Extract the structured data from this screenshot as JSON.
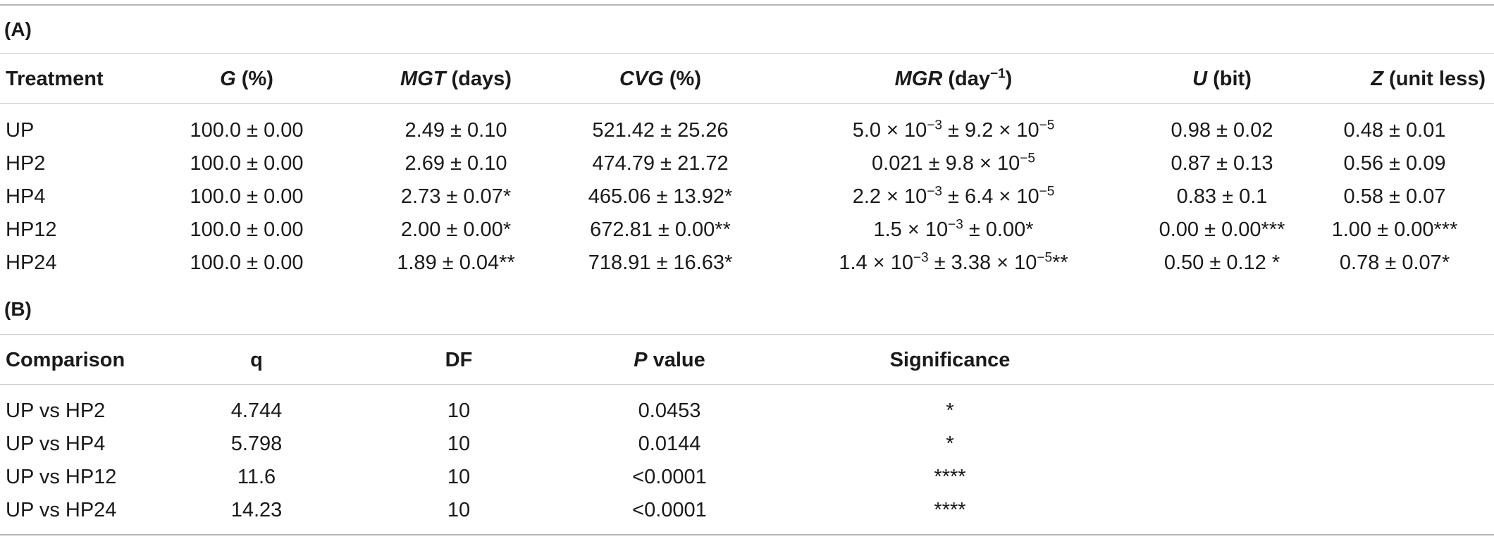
{
  "tableA": {
    "label": "(A)",
    "headers": [
      {
        "main": "Treatment",
        "italic": "",
        "rest": "",
        "sup": "",
        "rest2": ""
      },
      {
        "main": "",
        "italic": "G",
        "rest": " (%)",
        "sup": "",
        "rest2": ""
      },
      {
        "main": "",
        "italic": "MGT",
        "rest": " (days)",
        "sup": "",
        "rest2": ""
      },
      {
        "main": "",
        "italic": "CVG",
        "rest": " (%)",
        "sup": "",
        "rest2": ""
      },
      {
        "main": "",
        "italic": "MGR",
        "rest": " (day",
        "sup": "−1",
        "rest2": ")"
      },
      {
        "main": "",
        "italic": "U",
        "rest": " (bit)",
        "sup": "",
        "rest2": ""
      },
      {
        "main": "",
        "italic": "Z",
        "rest": " (unit less)",
        "sup": "",
        "rest2": ""
      }
    ],
    "rows": [
      {
        "treatment": "UP",
        "g": "100.0 ± 0.00",
        "mgt": "2.49 ± 0.10",
        "cvg": "521.42 ± 25.26",
        "mgr": [
          {
            "t": "5.0 × 10",
            "sup": false
          },
          {
            "t": "−3",
            "sup": true
          },
          {
            "t": " ± 9.2 × 10",
            "sup": false
          },
          {
            "t": "−5",
            "sup": true
          }
        ],
        "u": "0.98 ± 0.02",
        "z": "0.48 ± 0.01"
      },
      {
        "treatment": "HP2",
        "g": "100.0 ± 0.00",
        "mgt": "2.69 ± 0.10",
        "cvg": "474.79 ± 21.72",
        "mgr": [
          {
            "t": "0.021 ± 9.8 × 10",
            "sup": false
          },
          {
            "t": "−5",
            "sup": true
          }
        ],
        "u": "0.87 ± 0.13",
        "z": "0.56 ± 0.09"
      },
      {
        "treatment": "HP4",
        "g": "100.0 ± 0.00",
        "mgt": "2.73 ± 0.07*",
        "cvg": "465.06 ± 13.92*",
        "mgr": [
          {
            "t": "2.2 × 10",
            "sup": false
          },
          {
            "t": "−3",
            "sup": true
          },
          {
            "t": " ± 6.4 × 10",
            "sup": false
          },
          {
            "t": "−5",
            "sup": true
          }
        ],
        "u": "0.83 ± 0.1",
        "z": "0.58 ± 0.07"
      },
      {
        "treatment": "HP12",
        "g": "100.0 ± 0.00",
        "mgt": "2.00 ± 0.00*",
        "cvg": "672.81 ± 0.00**",
        "mgr": [
          {
            "t": "1.5 × 10",
            "sup": false
          },
          {
            "t": "−3",
            "sup": true
          },
          {
            "t": " ± 0.00*",
            "sup": false
          }
        ],
        "u": "0.00 ± 0.00***",
        "z": "1.00 ± 0.00***"
      },
      {
        "treatment": "HP24",
        "g": "100.0 ± 0.00",
        "mgt": "1.89 ± 0.04**",
        "cvg": "718.91 ± 16.63*",
        "mgr": [
          {
            "t": "1.4 × 10",
            "sup": false
          },
          {
            "t": "−3",
            "sup": true
          },
          {
            "t": " ± 3.38 × 10",
            "sup": false
          },
          {
            "t": "−5",
            "sup": true
          },
          {
            "t": "**",
            "sup": false
          }
        ],
        "u": "0.50 ± 0.12 *",
        "z": "0.78 ± 0.07*"
      }
    ]
  },
  "tableB": {
    "label": "(B)",
    "headers": [
      {
        "main": "Comparison",
        "italic": "",
        "rest": ""
      },
      {
        "main": "q",
        "italic": "",
        "rest": ""
      },
      {
        "main": "DF",
        "italic": "",
        "rest": ""
      },
      {
        "main": "",
        "italic": "P",
        "rest": " value"
      },
      {
        "main": "Significance",
        "italic": "",
        "rest": ""
      }
    ],
    "rows": [
      {
        "comparison": "UP vs HP2",
        "q": "4.744",
        "df": "10",
        "p": "0.0453",
        "sig": "*"
      },
      {
        "comparison": "UP vs HP4",
        "q": "5.798",
        "df": "10",
        "p": "0.0144",
        "sig": "*"
      },
      {
        "comparison": "UP vs HP12",
        "q": "11.6",
        "df": "10",
        "p": "<0.0001",
        "sig": "****"
      },
      {
        "comparison": "UP vs HP24",
        "q": "14.23",
        "df": "10",
        "p": "<0.0001",
        "sig": "****"
      }
    ]
  }
}
